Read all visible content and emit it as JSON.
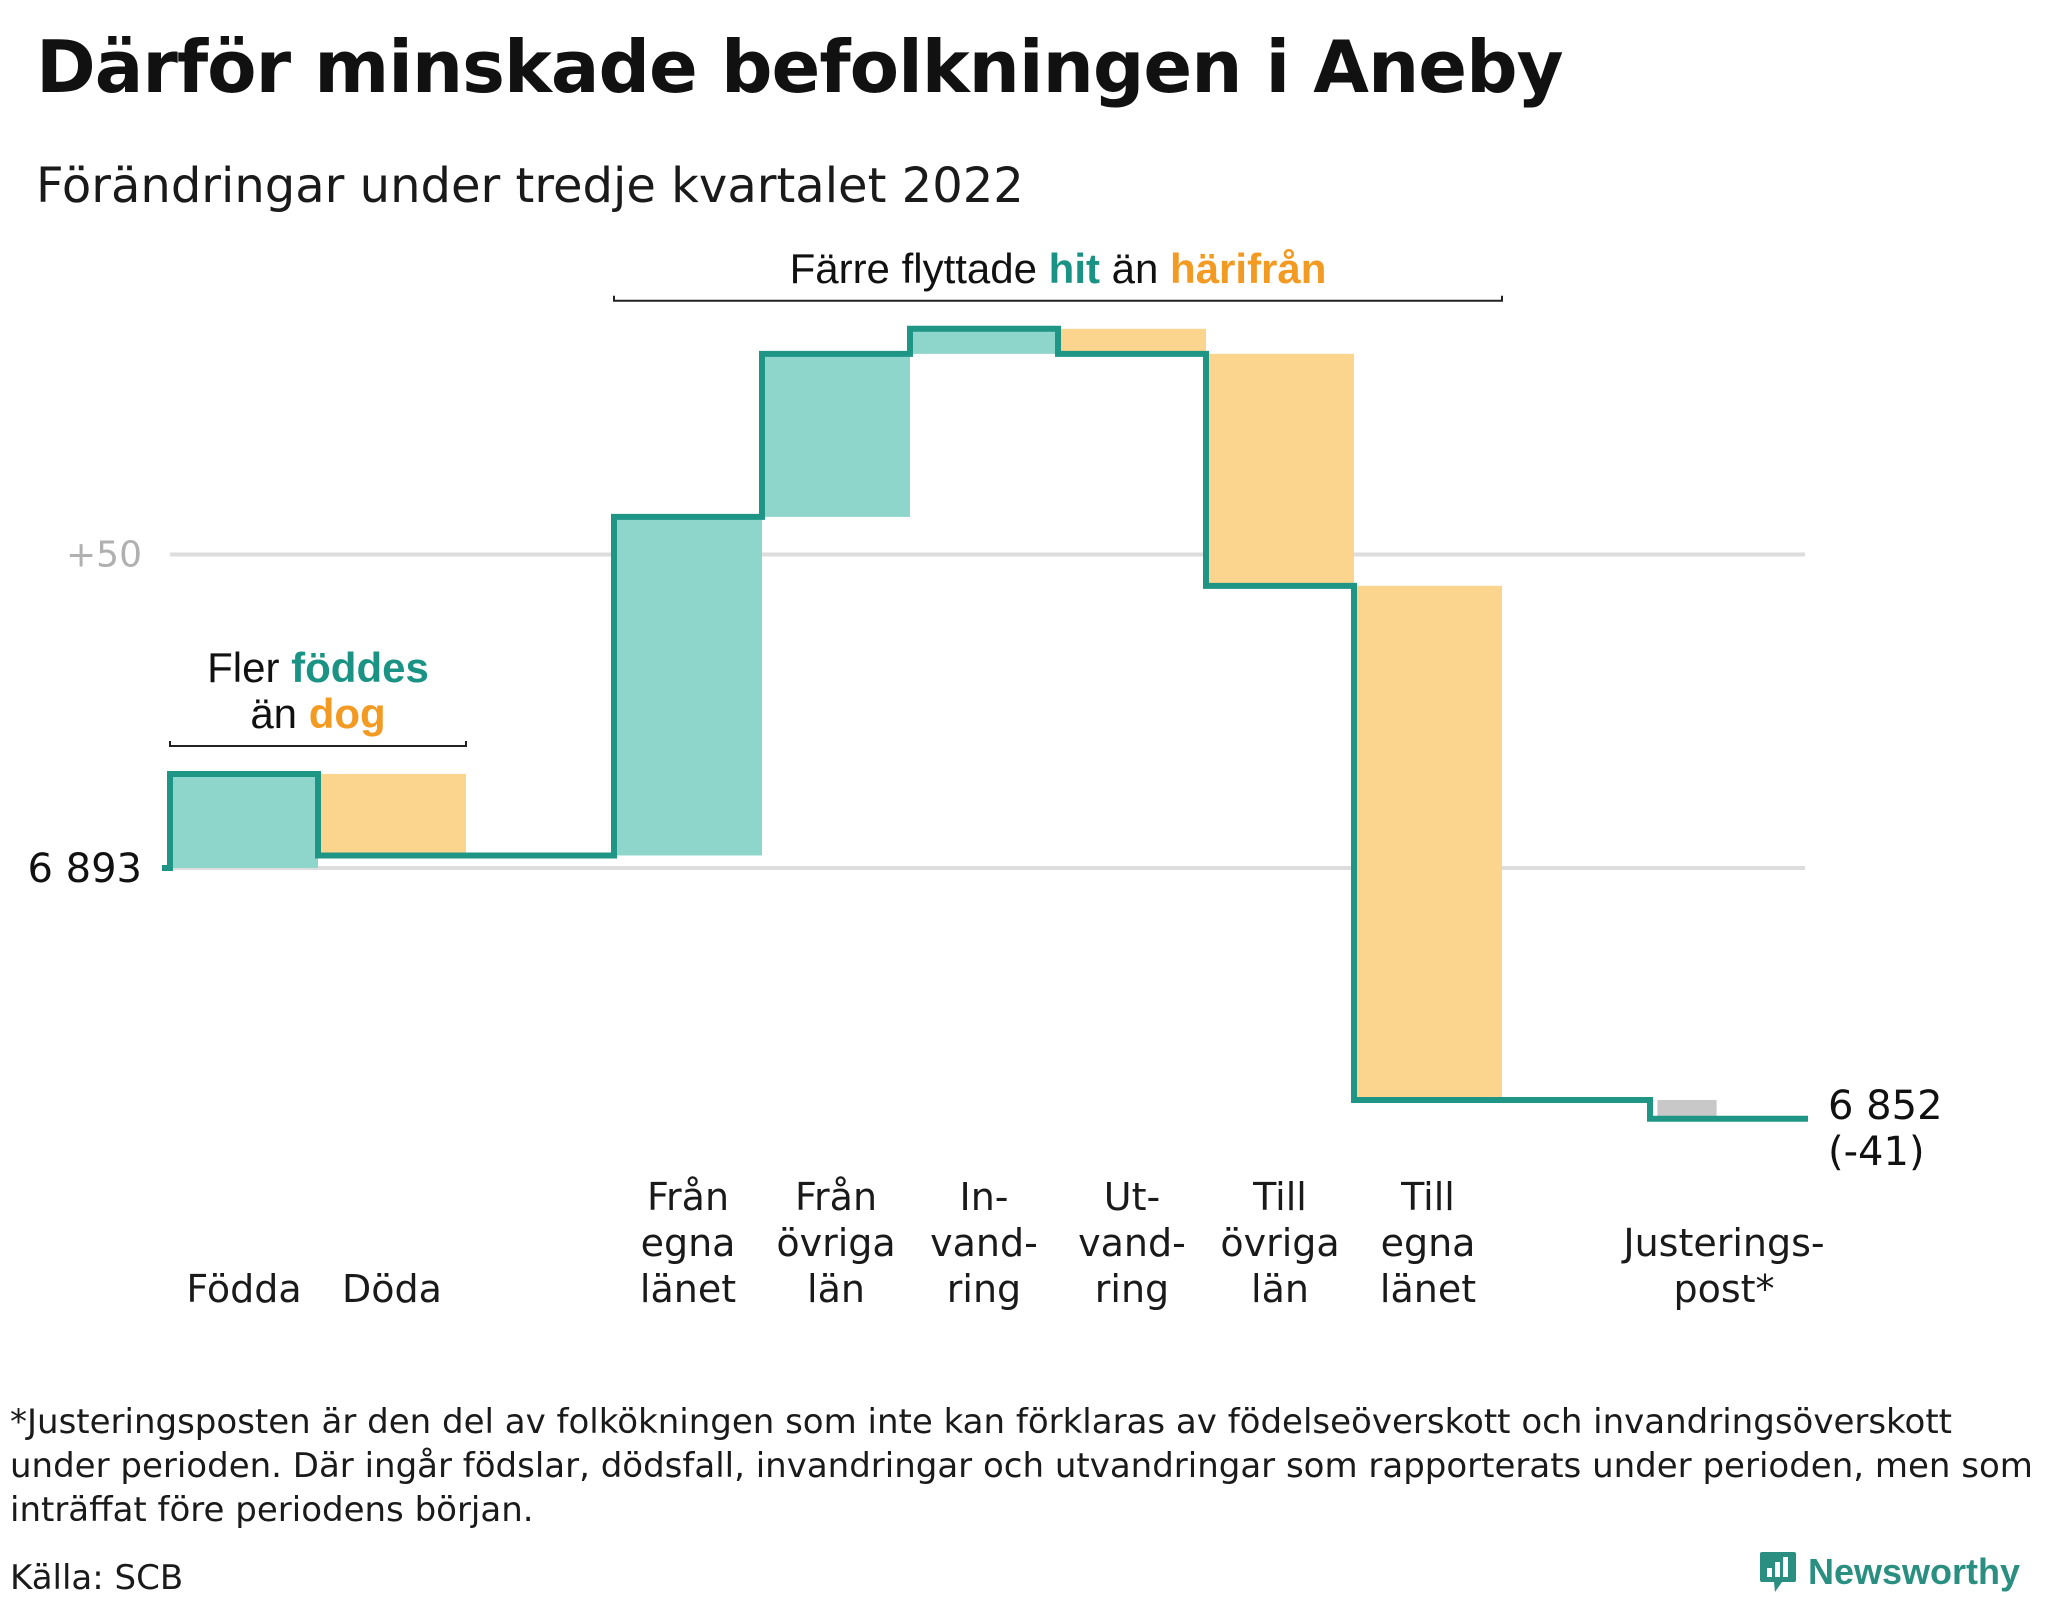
{
  "title": "Därför minskade befolkningen i Aneby",
  "subtitle": "Förändringar under tredje kvartalet 2022",
  "colors": {
    "in": "#8ed5cc",
    "out": "#fbd58d",
    "adjust": "#c8c8c8",
    "line": "#1e9585",
    "accent_teal": "#1a9384",
    "accent_orange": "#f29a22",
    "grid": "#dddddd"
  },
  "chart_data": {
    "type": "waterfall",
    "start_value": 6893,
    "start_label": "6 893",
    "end_value": 6852,
    "end_label": "6 852",
    "end_change_label": "(-41)",
    "y_tick_labels": [
      {
        "value": 6943,
        "label": "+50"
      }
    ],
    "ylim": [
      6810,
      6980
    ],
    "steps": [
      {
        "label": [
          "Födda"
        ],
        "delta": 15,
        "kind": "in"
      },
      {
        "label": [
          "Döda"
        ],
        "delta": -13,
        "kind": "out"
      },
      {
        "label": [],
        "delta": 0,
        "kind": "none"
      },
      {
        "label": [
          "Från",
          "egna",
          "länet"
        ],
        "delta": 54,
        "kind": "in"
      },
      {
        "label": [
          "Från",
          "övriga",
          "län"
        ],
        "delta": 26,
        "kind": "in"
      },
      {
        "label": [
          "In-",
          "vand-",
          "ring"
        ],
        "delta": 4,
        "kind": "in"
      },
      {
        "label": [
          "Ut-",
          "vand-",
          "ring"
        ],
        "delta": -4,
        "kind": "out"
      },
      {
        "label": [
          "Till",
          "övriga",
          "län"
        ],
        "delta": -37,
        "kind": "out"
      },
      {
        "label": [
          "Till",
          "egna",
          "länet"
        ],
        "delta": -82,
        "kind": "out"
      },
      {
        "label": [],
        "delta": 0,
        "kind": "none"
      },
      {
        "label": [
          "Justerings-",
          "post*"
        ],
        "delta": -3,
        "kind": "adjust"
      }
    ],
    "annotations": [
      {
        "from_step": 0,
        "to_step": 1,
        "lines": [
          [
            {
              "text": "Fler ",
              "color": "default"
            },
            {
              "text": "föddes",
              "color": "accent_teal"
            }
          ],
          [
            {
              "text": "än ",
              "color": "default"
            },
            {
              "text": "dog",
              "color": "accent_orange"
            }
          ]
        ]
      },
      {
        "from_step": 3,
        "to_step": 8,
        "lines": [
          [
            {
              "text": "Färre flyttade ",
              "color": "default"
            },
            {
              "text": "hit",
              "color": "accent_teal"
            },
            {
              "text": " än ",
              "color": "default"
            },
            {
              "text": "härifrån",
              "color": "accent_orange"
            }
          ]
        ]
      }
    ]
  },
  "footnote": "*Justeringsposten är den del av folkökningen som inte kan förklaras av födelseöverskott och invandringsöverskott under perioden. Där ingår födslar, dödsfall, invandringar och utvandringar som rapporterats under perioden, men som inträffat före periodens början.",
  "source": "Källa: SCB",
  "logo": {
    "text": "Newsworthy",
    "icon": "chart-speech-bubble-icon"
  }
}
